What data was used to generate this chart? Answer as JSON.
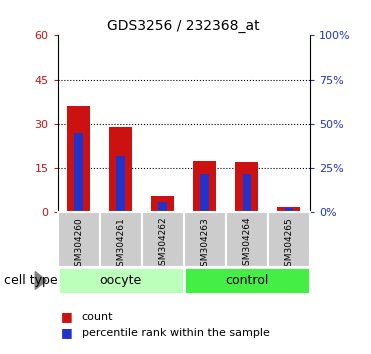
{
  "title": "GDS3256 / 232368_at",
  "samples": [
    "GSM304260",
    "GSM304261",
    "GSM304262",
    "GSM304263",
    "GSM304264",
    "GSM304265"
  ],
  "count_values": [
    36,
    29,
    5.5,
    17.5,
    17,
    2
  ],
  "percentile_values": [
    27,
    19,
    3.5,
    13,
    13,
    1.5
  ],
  "left_ylim": [
    0,
    60
  ],
  "right_ylim": [
    0,
    100
  ],
  "left_yticks": [
    0,
    15,
    30,
    45,
    60
  ],
  "right_yticks": [
    0,
    25,
    50,
    75,
    100
  ],
  "right_yticklabels": [
    "0%",
    "25%",
    "50%",
    "75%",
    "100%"
  ],
  "bar_color_count": "#cc1111",
  "bar_color_pct": "#2233cc",
  "bar_width": 0.55,
  "pct_bar_width": 0.2,
  "groups": [
    {
      "label": "oocyte",
      "indices": [
        0,
        1,
        2
      ],
      "color": "#bbffbb"
    },
    {
      "label": "control",
      "indices": [
        3,
        4,
        5
      ],
      "color": "#44ee44"
    }
  ],
  "cell_type_label": "cell type",
  "legend_count_label": "count",
  "legend_pct_label": "percentile rank within the sample",
  "tick_bg_color": "#cccccc",
  "grid_color": "black",
  "left_tick_color": "#cc1111",
  "right_tick_color": "#2233cc",
  "background_color": "#ffffff",
  "grid_yticks": [
    15,
    30,
    45
  ]
}
